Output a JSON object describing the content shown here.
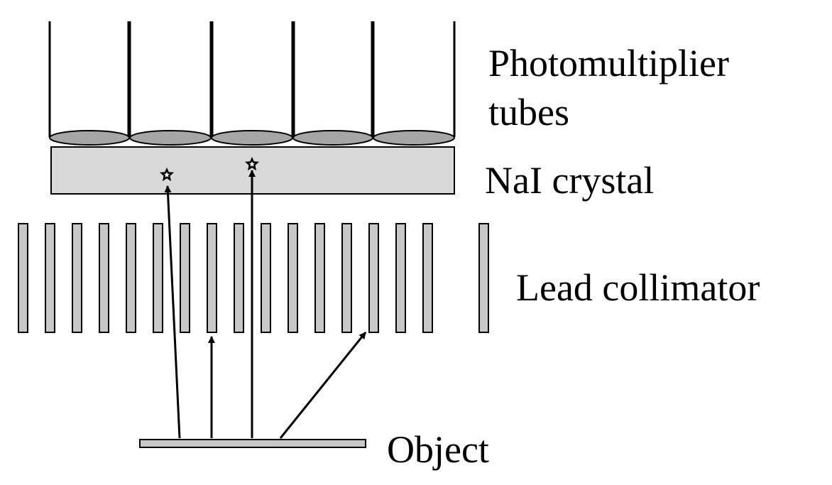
{
  "labels": {
    "photomultiplier_line1": "Photomultiplier",
    "photomultiplier_line2": "tubes",
    "crystal": "NaI crystal",
    "collimator": "Lead collimator",
    "object": "Object"
  },
  "counts": {
    "photomultiplier_tubes": 5,
    "collimator_septa": 17,
    "scintillation_events": 2,
    "gamma_rays": 4
  },
  "colors": {
    "crystal_fill": "#d9d9d9",
    "septa_fill": "#c8c8c8",
    "tube_face_fill": "#a6a6a6",
    "object_fill": "#c8c8c8",
    "line": "#000000"
  },
  "icons": {
    "scintillation": "star-icon"
  }
}
